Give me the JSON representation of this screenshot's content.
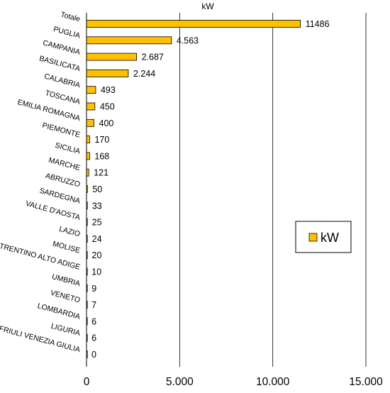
{
  "chart_data": {
    "type": "bar",
    "orientation": "horizontal",
    "title": "kW",
    "categories": [
      "Totale",
      "PUGLIA",
      "CAMPANIA",
      "BASILICATA",
      "CALABRIA",
      "TOSCANA",
      "EMILIA ROMAGNA",
      "PIEMONTE",
      "SICILIA",
      "MARCHE",
      "ABRUZZO",
      "SARDEGNA",
      "VALLE D'AOSTA",
      "LAZIO",
      "MOLISE",
      "TRENTINO ALTO ADIGE",
      "UMBRIA",
      "VENETO",
      "LOMBARDIA",
      "LIGURIA",
      "FRIULI VENEZIA GIULIA"
    ],
    "series": [
      {
        "name": "kW",
        "values": [
          11486,
          4563,
          2687,
          2244,
          493,
          450,
          400,
          170,
          168,
          121,
          50,
          33,
          25,
          24,
          20,
          10,
          9,
          7,
          6,
          6,
          0
        ],
        "labels": [
          "11486",
          "4.563",
          "2.687",
          "2.244",
          "493",
          "450",
          "400",
          "170",
          "168",
          "121",
          "50",
          "33",
          "25",
          "24",
          "20",
          "10",
          "9",
          "7",
          "6",
          "6",
          "0"
        ]
      }
    ],
    "xlim": [
      0,
      15000
    ],
    "xticks": [
      0,
      5000,
      10000,
      15000
    ],
    "xtick_labels": [
      "0",
      "5.000",
      "10.000",
      "15.000"
    ],
    "grid": "vertical major lines",
    "legend": "right",
    "colors": {
      "bar": "#FFC000",
      "bar_stroke": "#000000"
    }
  }
}
